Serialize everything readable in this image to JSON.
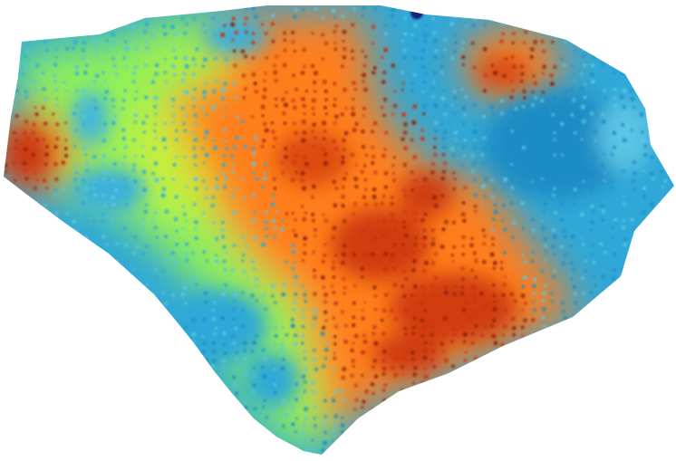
{
  "map": {
    "type": "interpolated-heatmap",
    "legend": "none",
    "axes": "none",
    "colors": {
      "background": "#ffffff",
      "deep_blue": "#1d8cc4",
      "blue": "#2fa8d8",
      "light_blue": "#5cc4e4",
      "green": "#8ff05a",
      "yellow_green": "#c4f03c",
      "orange": "#ff7e1c",
      "dark_orange": "#ec5a12",
      "red": "#c8320c",
      "dark_red": "#8f1e08",
      "navy": "#16237a"
    }
  }
}
